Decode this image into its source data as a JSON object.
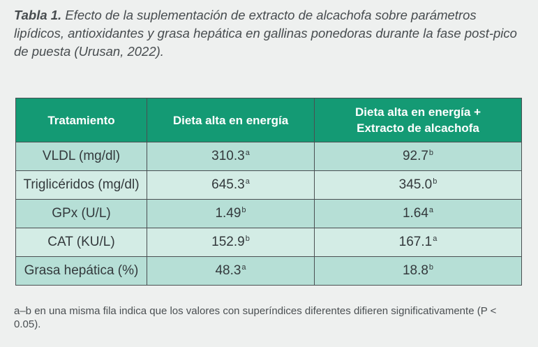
{
  "caption": {
    "label": "Tabla 1.",
    "text": "Efecto de la suplementación de extracto de alcachofa sobre parámetros lipídicos, antioxidantes y grasa hepática en gallinas ponedoras durante la fase post-pico de puesta (Urusan, 2022)."
  },
  "table": {
    "headers": {
      "col1": "Tratamiento",
      "col2": "Dieta alta en energía",
      "col3_line1": "Dieta alta en energía +",
      "col3_line2": "Extracto de alcachofa"
    },
    "rows": [
      {
        "parameter": "VLDL (mg/dl)",
        "high_energy": "310.3",
        "high_energy_sup": "a",
        "artichoke": "92.7",
        "artichoke_sup": "b"
      },
      {
        "parameter": "Triglicéridos (mg/dl)",
        "high_energy": "645.3",
        "high_energy_sup": "a",
        "artichoke": "345.0",
        "artichoke_sup": "b"
      },
      {
        "parameter": "GPx (U/L)",
        "high_energy": "1.49",
        "high_energy_sup": "b",
        "artichoke": "1.64",
        "artichoke_sup": "a"
      },
      {
        "parameter": "CAT (KU/L)",
        "high_energy": "152.9",
        "high_energy_sup": "b",
        "artichoke": "167.1",
        "artichoke_sup": "a"
      },
      {
        "parameter": "Grasa hepática (%)",
        "high_energy": "48.3",
        "high_energy_sup": "a",
        "artichoke": "18.8",
        "artichoke_sup": "b"
      }
    ]
  },
  "footnote": "a–b en una misma fila indica que los valores con superíndices diferentes difieren significativamente (P < 0.05).",
  "colors": {
    "header_bg": "#149a74",
    "row_dark": "#b6dfd6",
    "row_light": "#d3ece5",
    "page_bg": "#eef0ef"
  }
}
